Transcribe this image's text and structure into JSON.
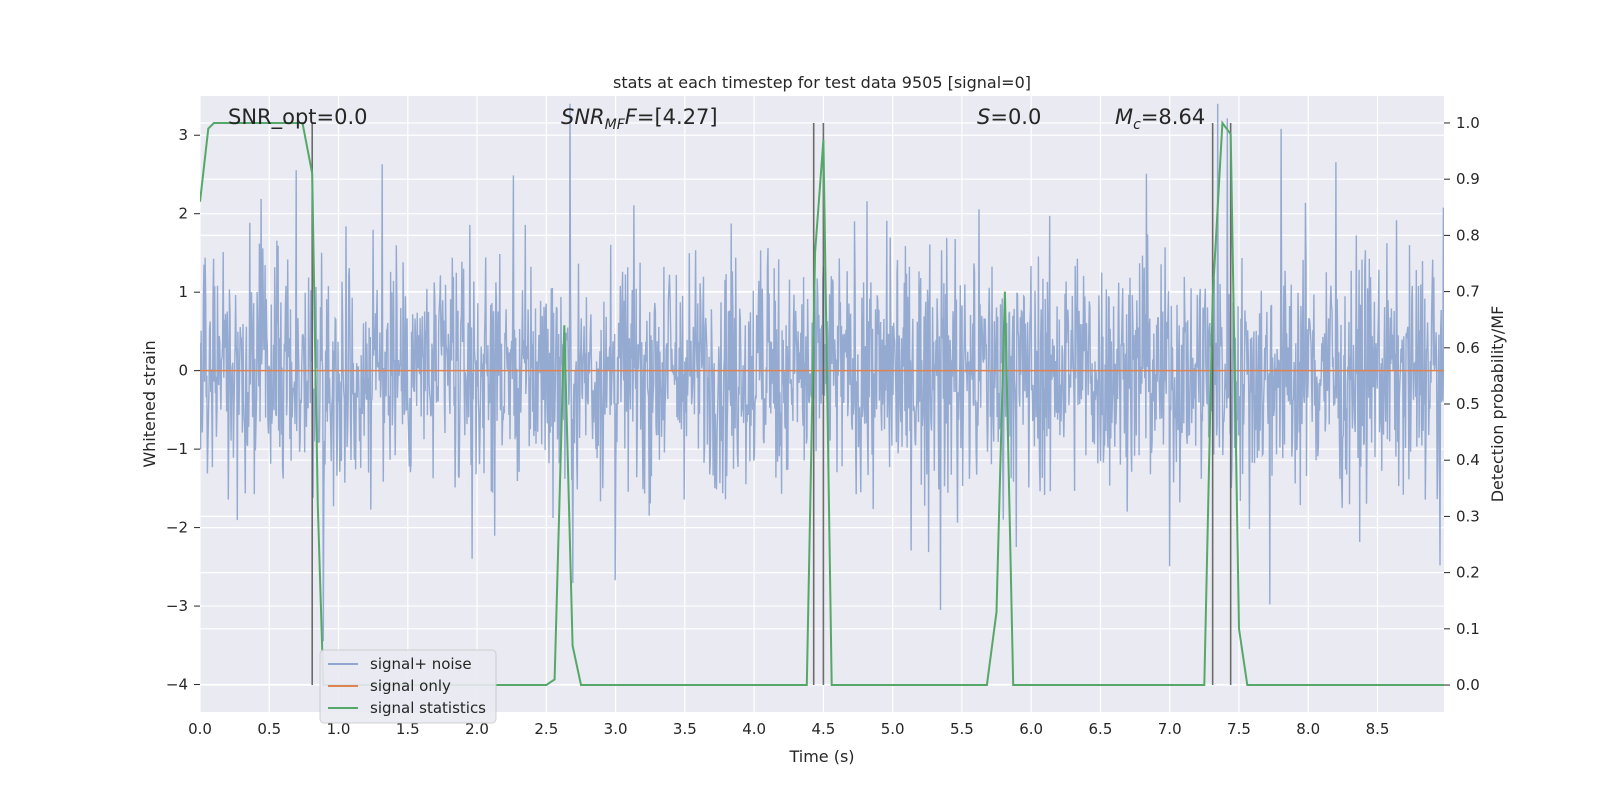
{
  "chart_data": {
    "type": "line",
    "title": "stats at each timestep for test data 9505 [signal=0]",
    "xlabel": "Time (s)",
    "ylabel_left": "Whitened strain",
    "ylabel_right": "Detection probability/MF",
    "xlim": [
      0.0,
      8.98
    ],
    "ylim_left": [
      -4.35,
      3.5
    ],
    "ylim_right": [
      -0.048,
      1.048
    ],
    "grid": true,
    "x_ticks": [
      0.0,
      0.5,
      1.0,
      1.5,
      2.0,
      2.5,
      3.0,
      3.5,
      4.0,
      4.5,
      5.0,
      5.5,
      6.0,
      6.5,
      7.0,
      7.5,
      8.0,
      8.5
    ],
    "x_tick_labels": [
      "0.0",
      "0.5",
      "1.0",
      "1.5",
      "2.0",
      "2.5",
      "3.0",
      "3.5",
      "4.0",
      "4.5",
      "5.0",
      "5.5",
      "6.0",
      "6.5",
      "7.0",
      "7.5",
      "8.0",
      "8.5"
    ],
    "y_left_ticks": [
      3,
      2,
      1,
      0,
      -1,
      -2,
      -3,
      -4
    ],
    "y_left_tick_labels": [
      "3",
      "2",
      "1",
      "0",
      "−1",
      "−2",
      "−3",
      "−4"
    ],
    "y_right_ticks": [
      1.0,
      0.9,
      0.8,
      0.7,
      0.6,
      0.5,
      0.4,
      0.3,
      0.2,
      0.1,
      0.0
    ],
    "y_right_tick_labels": [
      "1.0",
      "0.9",
      "0.8",
      "0.7",
      "0.6",
      "0.5",
      "0.4",
      "0.3",
      "0.2",
      "0.1",
      "0.0"
    ],
    "annotations": {
      "snr_opt": "SNR_opt=0.0",
      "snr_mf_main": "SNR",
      "snr_mf_sub": "MF",
      "snr_mf_value": "=[4.27]",
      "s_main": "S",
      "s_value": "=0.0",
      "mc_main": "M",
      "mc_sub": "c",
      "mc_value": "=8.64"
    },
    "vertical_lines_x": [
      0.81,
      4.43,
      4.5,
      7.31,
      7.44
    ],
    "series": [
      {
        "name": "signal+ noise",
        "color": "#8fa6cf",
        "axis": "left",
        "kind": "noise",
        "x_range": [
          0.0,
          8.98
        ],
        "y_range": [
          -3.6,
          3.4
        ]
      },
      {
        "name": "signal only",
        "color": "#dd8452",
        "axis": "left",
        "x": [
          0.0,
          8.98
        ],
        "y": [
          0.0,
          0.0
        ]
      },
      {
        "name": "signal statistics",
        "color": "#55a868",
        "axis": "right",
        "x": [
          0.0,
          0.06,
          0.1,
          0.2,
          0.5,
          0.74,
          0.81,
          0.85,
          0.89,
          0.95,
          1.0,
          2.0,
          2.5,
          2.56,
          2.63,
          2.69,
          2.75,
          3.0,
          4.0,
          4.38,
          4.44,
          4.5,
          4.56,
          5.0,
          5.68,
          5.75,
          5.81,
          5.87,
          6.0,
          7.0,
          7.25,
          7.31,
          7.38,
          7.44,
          7.5,
          7.56,
          8.0,
          8.98
        ],
        "y": [
          0.86,
          0.99,
          1.0,
          1.0,
          1.0,
          1.0,
          0.91,
          0.32,
          0.0,
          0.0,
          0.0,
          0.0,
          0.0,
          0.01,
          0.64,
          0.07,
          0.0,
          0.0,
          0.0,
          0.0,
          0.77,
          0.97,
          0.0,
          0.0,
          0.0,
          0.13,
          0.7,
          0.0,
          0.0,
          0.0,
          0.0,
          0.69,
          1.0,
          0.98,
          0.1,
          0.0,
          0.0,
          0.0
        ]
      }
    ],
    "legend": {
      "placement": "lower-left",
      "entries": [
        "signal+ noise",
        "signal only",
        "signal statistics"
      ]
    },
    "colors": {
      "plot_background": "#eaeaf2",
      "grid": "#ffffff",
      "vertical_line": "#555555"
    }
  }
}
